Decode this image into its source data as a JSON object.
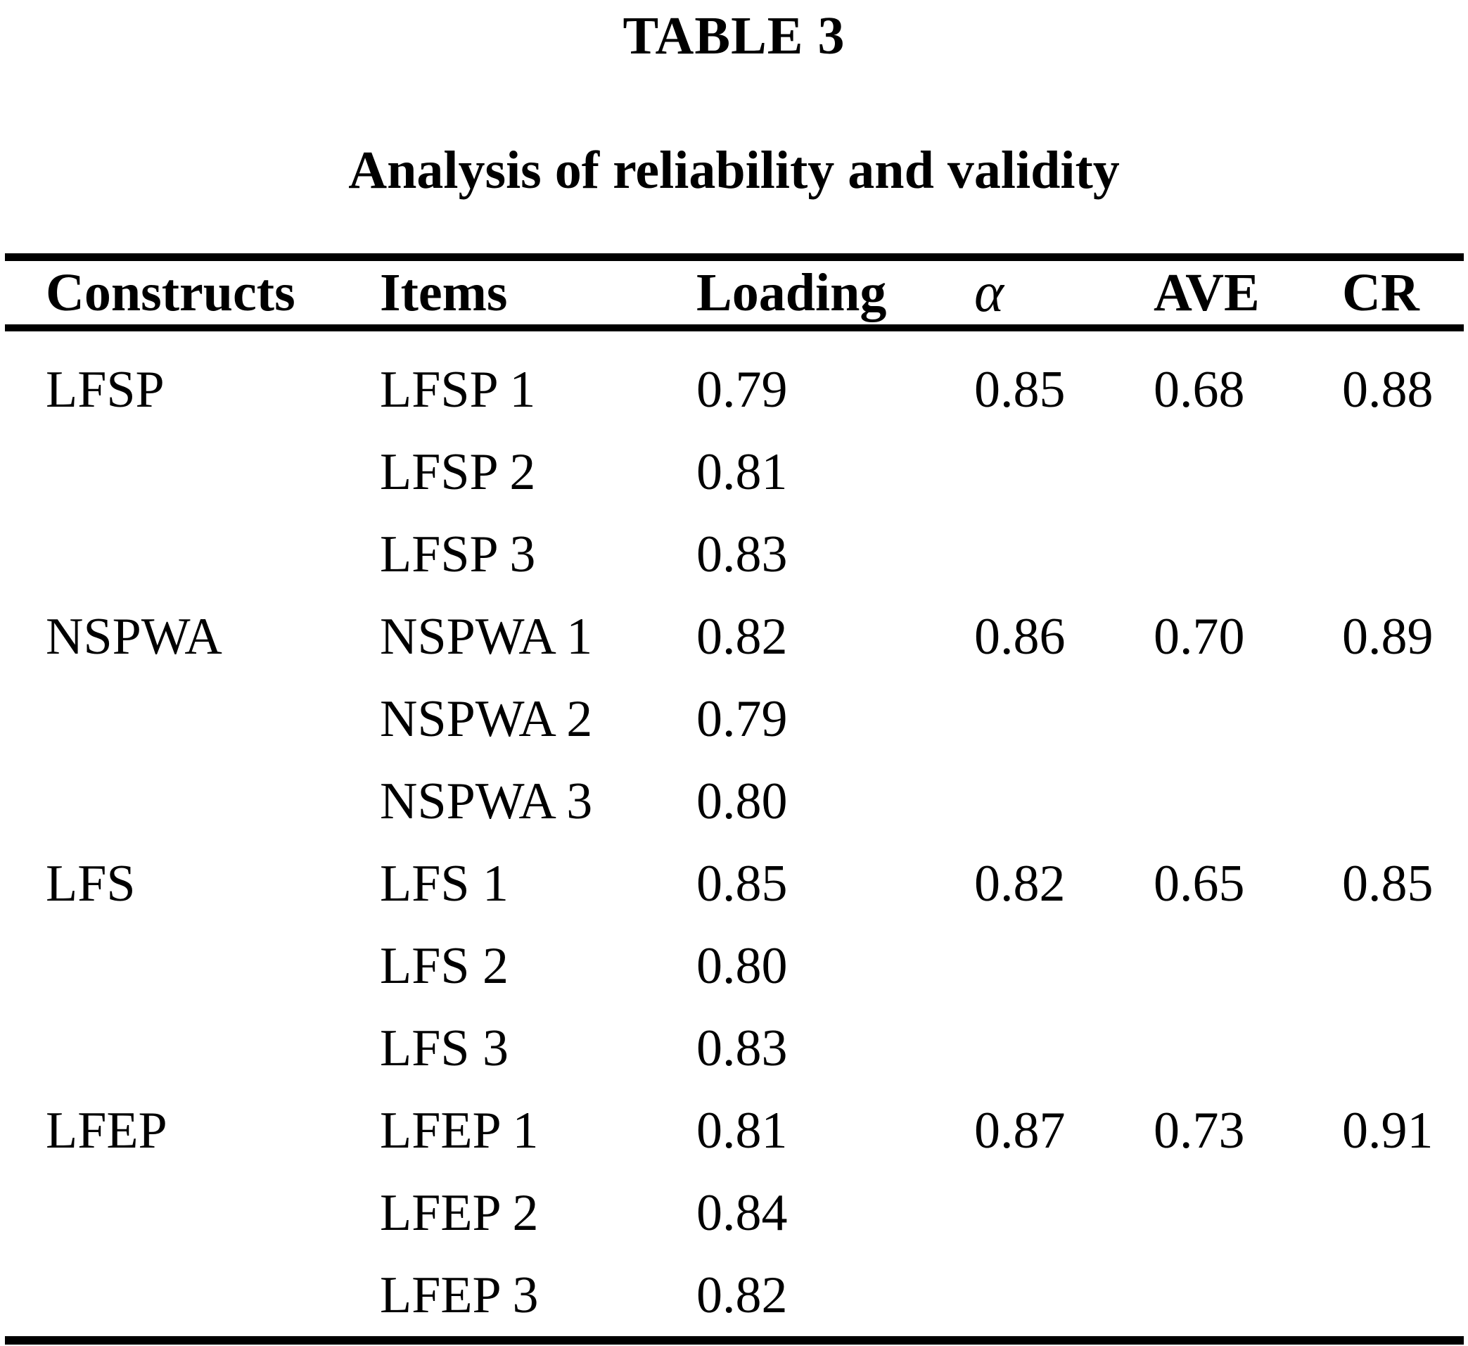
{
  "page": {
    "table_label": "TABLE 3",
    "title": "Analysis of reliability and validity",
    "background_color": "#ffffff",
    "text_color": "#000000"
  },
  "table": {
    "columns": [
      "Constructs",
      "Items",
      "Loading",
      "α",
      "AVE",
      "CR"
    ],
    "rows": [
      {
        "construct": "LFSP",
        "item": "LFSP 1",
        "loading": "0.79",
        "alpha": "0.85",
        "ave": "0.68",
        "cr": "0.88"
      },
      {
        "construct": "",
        "item": "LFSP 2",
        "loading": "0.81",
        "alpha": "",
        "ave": "",
        "cr": ""
      },
      {
        "construct": "",
        "item": "LFSP 3",
        "loading": "0.83",
        "alpha": "",
        "ave": "",
        "cr": ""
      },
      {
        "construct": "NSPWA",
        "item": "NSPWA 1",
        "loading": "0.82",
        "alpha": "0.86",
        "ave": "0.70",
        "cr": "0.89"
      },
      {
        "construct": "",
        "item": "NSPWA 2",
        "loading": "0.79",
        "alpha": "",
        "ave": "",
        "cr": ""
      },
      {
        "construct": "",
        "item": "NSPWA 3",
        "loading": "0.80",
        "alpha": "",
        "ave": "",
        "cr": ""
      },
      {
        "construct": "LFS",
        "item": "LFS 1",
        "loading": "0.85",
        "alpha": "0.82",
        "ave": "0.65",
        "cr": "0.85"
      },
      {
        "construct": "",
        "item": "LFS 2",
        "loading": "0.80",
        "alpha": "",
        "ave": "",
        "cr": ""
      },
      {
        "construct": "",
        "item": "LFS 3",
        "loading": "0.83",
        "alpha": "",
        "ave": "",
        "cr": ""
      },
      {
        "construct": "LFEP",
        "item": "LFEP 1",
        "loading": "0.81",
        "alpha": "0.87",
        "ave": "0.73",
        "cr": "0.91"
      },
      {
        "construct": "",
        "item": "LFEP 2",
        "loading": "0.84",
        "alpha": "",
        "ave": "",
        "cr": ""
      },
      {
        "construct": "",
        "item": "LFEP 3",
        "loading": "0.82",
        "alpha": "",
        "ave": "",
        "cr": ""
      }
    ]
  },
  "chart_data": {
    "type": "table",
    "title": "Analysis of reliability and validity",
    "columns": [
      "Constructs",
      "Items",
      "Loading",
      "α",
      "AVE",
      "CR"
    ],
    "groups": [
      {
        "construct": "LFSP",
        "alpha": 0.85,
        "ave": 0.68,
        "cr": 0.88,
        "items": [
          "LFSP 1",
          "LFSP 2",
          "LFSP 3"
        ],
        "loadings": [
          0.79,
          0.81,
          0.83
        ]
      },
      {
        "construct": "NSPWA",
        "alpha": 0.86,
        "ave": 0.7,
        "cr": 0.89,
        "items": [
          "NSPWA 1",
          "NSPWA 2",
          "NSPWA 3"
        ],
        "loadings": [
          0.82,
          0.79,
          0.8
        ]
      },
      {
        "construct": "LFS",
        "alpha": 0.82,
        "ave": 0.65,
        "cr": 0.85,
        "items": [
          "LFS 1",
          "LFS 2",
          "LFS 3"
        ],
        "loadings": [
          0.85,
          0.8,
          0.83
        ]
      },
      {
        "construct": "LFEP",
        "alpha": 0.87,
        "ave": 0.73,
        "cr": 0.91,
        "items": [
          "LFEP 1",
          "LFEP 2",
          "LFEP 3"
        ],
        "loadings": [
          0.81,
          0.84,
          0.82
        ]
      }
    ]
  }
}
